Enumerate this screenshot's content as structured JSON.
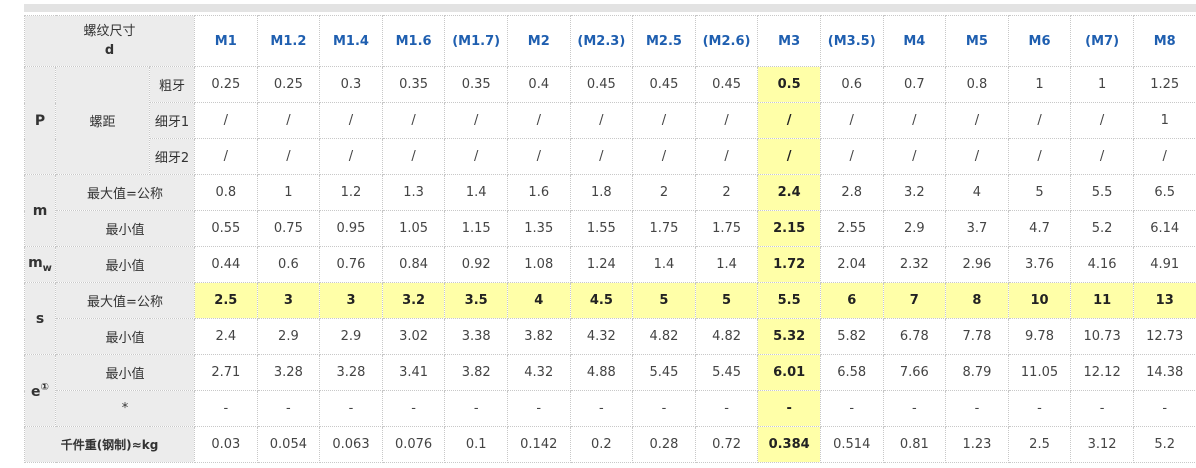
{
  "header": {
    "label_line1": "螺纹尺寸",
    "label_line2": "d",
    "sizes": [
      "M1",
      "M1.2",
      "M1.4",
      "M1.6",
      "(M1.7)",
      "M2",
      "(M2.3)",
      "M2.5",
      "(M2.6)",
      "M3",
      "(M3.5)",
      "M4",
      "M5",
      "M6",
      "(M7)",
      "M8"
    ]
  },
  "highlight_color": "#ffffa8",
  "header_text_color": "#1f5fb0",
  "rows": {
    "p_symbol": "P",
    "pitch_label": "螺距",
    "coarse_label": "粗牙",
    "coarse": [
      "0.25",
      "0.25",
      "0.3",
      "0.35",
      "0.35",
      "0.4",
      "0.45",
      "0.45",
      "0.45",
      "0.5",
      "0.6",
      "0.7",
      "0.8",
      "1",
      "1",
      "1.25"
    ],
    "fine1_label": "细牙1",
    "fine1": [
      "/",
      "/",
      "/",
      "/",
      "/",
      "/",
      "/",
      "/",
      "/",
      "/",
      "/",
      "/",
      "/",
      "/",
      "/",
      "1"
    ],
    "fine2_label": "细牙2",
    "fine2": [
      "/",
      "/",
      "/",
      "/",
      "/",
      "/",
      "/",
      "/",
      "/",
      "/",
      "/",
      "/",
      "/",
      "/",
      "/",
      "/"
    ],
    "m_symbol": "m",
    "m_max_label": "最大值=公称",
    "m_max": [
      "0.8",
      "1",
      "1.2",
      "1.3",
      "1.4",
      "1.6",
      "1.8",
      "2",
      "2",
      "2.4",
      "2.8",
      "3.2",
      "4",
      "5",
      "5.5",
      "6.5"
    ],
    "m_min_label": "最小值",
    "m_min": [
      "0.55",
      "0.75",
      "0.95",
      "1.05",
      "1.15",
      "1.35",
      "1.55",
      "1.75",
      "1.75",
      "2.15",
      "2.55",
      "2.9",
      "3.7",
      "4.7",
      "5.2",
      "6.14"
    ],
    "mw_symbol": "m",
    "mw_sub": "w",
    "mw_min_label": "最小值",
    "mw_min": [
      "0.44",
      "0.6",
      "0.76",
      "0.84",
      "0.92",
      "1.08",
      "1.24",
      "1.4",
      "1.4",
      "1.72",
      "2.04",
      "2.32",
      "2.96",
      "3.76",
      "4.16",
      "4.91"
    ],
    "s_symbol": "s",
    "s_max_label": "最大值=公称",
    "s_max": [
      "2.5",
      "3",
      "3",
      "3.2",
      "3.5",
      "4",
      "4.5",
      "5",
      "5",
      "5.5",
      "6",
      "7",
      "8",
      "10",
      "11",
      "13"
    ],
    "s_min_label": "最小值",
    "s_min": [
      "2.4",
      "2.9",
      "2.9",
      "3.02",
      "3.38",
      "3.82",
      "4.32",
      "4.82",
      "4.82",
      "5.32",
      "5.82",
      "6.78",
      "7.78",
      "9.78",
      "10.73",
      "12.73"
    ],
    "e_symbol": "e",
    "e_note": "①",
    "e_min_label": "最小值",
    "e_min": [
      "2.71",
      "3.28",
      "3.28",
      "3.41",
      "3.82",
      "4.32",
      "4.88",
      "5.45",
      "5.45",
      "6.01",
      "6.58",
      "7.66",
      "8.79",
      "11.05",
      "12.12",
      "14.38"
    ],
    "e_star_label": "*",
    "e_star": [
      "-",
      "-",
      "-",
      "-",
      "-",
      "-",
      "-",
      "-",
      "-",
      "-",
      "-",
      "-",
      "-",
      "-",
      "-",
      "-"
    ],
    "weight_label": "千件重(钢制)≈kg",
    "weight": [
      "0.03",
      "0.054",
      "0.063",
      "0.076",
      "0.1",
      "0.142",
      "0.2",
      "0.28",
      "0.72",
      "0.384",
      "0.514",
      "0.81",
      "1.23",
      "2.5",
      "3.12",
      "5.2"
    ]
  }
}
